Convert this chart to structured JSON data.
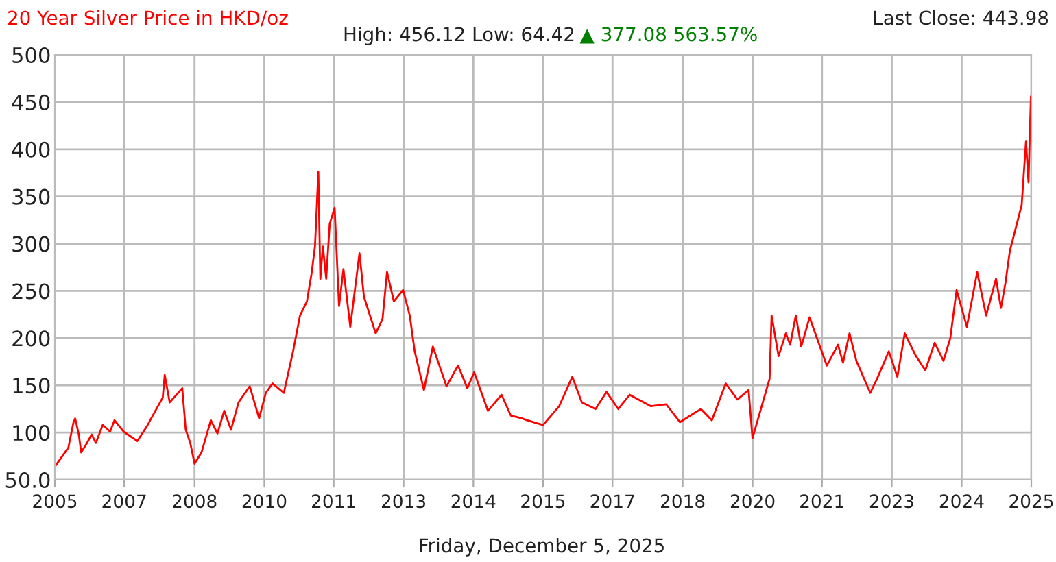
{
  "chart_data": {
    "type": "line",
    "title": "20 Year Silver Price in HKD/oz",
    "subtitle": "High: 456.12 Low: 64.42",
    "annotations": [
      "▲ 377.08 563.57%",
      "Last Close: 443.98",
      "Friday, December 5, 2025"
    ],
    "series": [
      {
        "color": "#ff0000",
        "x": [
          "2005-12-05",
          "2006-03-16",
          "2006-04-22",
          "2006-05-06",
          "2006-06-02",
          "2006-06-20",
          "2006-08-03",
          "2006-09-06",
          "2006-10-08",
          "2006-11-28",
          "2007-01-22",
          "2007-02-24",
          "2007-05-03",
          "2007-08-14",
          "2007-10-22",
          "2007-12-27",
          "2008-02-20",
          "2008-03-06",
          "2008-04-12",
          "2008-06-02",
          "2008-07-15",
          "2008-08-10",
          "2008-09-13",
          "2008-10-15",
          "2008-12-06",
          "2009-02-14",
          "2009-04-04",
          "2009-05-25",
          "2009-07-15",
          "2009-09-09",
          "2009-12-02",
          "2010-02-10",
          "2010-04-01",
          "2010-05-21",
          "2010-08-14",
          "2010-10-22",
          "2010-12-13",
          "2011-02-03",
          "2011-03-09",
          "2011-04-04",
          "2011-04-29",
          "2011-05-14",
          "2011-06-02",
          "2011-06-27",
          "2011-07-23",
          "2011-08-29",
          "2011-10-01",
          "2011-11-03",
          "2011-12-24",
          "2012-03-02",
          "2012-04-04",
          "2012-07-01",
          "2012-08-21",
          "2012-09-24",
          "2012-11-14",
          "2013-01-22",
          "2013-03-13",
          "2013-04-19",
          "2013-06-27",
          "2013-09-02",
          "2013-12-13",
          "2014-03-09",
          "2014-05-18",
          "2014-07-08",
          "2014-10-19",
          "2015-01-29",
          "2015-04-08",
          "2015-07-01",
          "2015-08-07",
          "2015-12-05",
          "2016-04-04",
          "2016-07-11",
          "2016-09-20",
          "2017-01-01",
          "2017-03-24",
          "2017-06-20",
          "2017-09-13",
          "2018-02-17",
          "2018-06-13",
          "2018-09-24",
          "2019-02-28",
          "2019-05-21",
          "2019-09-02",
          "2019-11-28",
          "2020-02-20",
          "2020-03-20",
          "2020-05-18",
          "2020-07-26",
          "2020-08-10",
          "2020-10-01",
          "2020-11-25",
          "2020-12-27",
          "2021-02-07",
          "2021-03-20",
          "2021-05-21",
          "2021-08-07",
          "2021-09-27",
          "2021-12-20",
          "2022-01-26",
          "2022-03-16",
          "2022-05-06",
          "2022-08-18",
          "2022-10-08",
          "2023-01-04",
          "2023-03-09",
          "2023-05-03",
          "2023-07-26",
          "2023-10-04",
          "2023-12-13",
          "2024-02-17",
          "2024-04-08",
          "2024-05-25",
          "2024-08-10",
          "2024-10-26",
          "2025-01-01",
          "2025-03-16",
          "2025-04-22",
          "2025-05-25",
          "2025-06-27",
          "2025-09-24",
          "2025-10-26",
          "2025-11-14",
          "2025-12-02",
          "2025-12-05"
        ],
        "values": [
          64,
          84,
          110,
          115,
          98,
          79,
          89,
          98,
          89,
          108,
          101,
          113,
          101,
          91,
          106,
          123,
          137,
          161,
          132,
          140,
          147,
          103,
          89,
          67,
          79,
          113,
          99,
          123,
          103,
          132,
          149,
          115,
          142,
          152,
          142,
          186,
          224,
          239,
          268,
          297,
          376,
          263,
          297,
          263,
          321,
          338,
          234,
          273,
          212,
          290,
          244,
          205,
          220,
          270,
          239,
          251,
          224,
          186,
          145,
          191,
          149,
          171,
          147,
          164,
          123,
          140,
          118,
          115,
          113,
          108,
          128,
          159,
          132,
          125,
          143,
          125,
          140,
          128,
          130,
          111,
          125,
          113,
          152,
          135,
          145,
          94,
          123,
          157,
          224,
          181,
          205,
          193,
          224,
          191,
          222,
          191,
          171,
          193,
          174,
          205,
          176,
          142,
          157,
          186,
          159,
          205,
          181,
          166,
          195,
          176,
          200,
          251,
          212,
          270,
          224,
          263,
          232,
          258,
          292,
          341,
          408,
          365,
          456,
          444
        ]
      }
    ],
    "xlim": [
      "2005-12-05",
      "2025-12-05"
    ],
    "xticks": [
      {
        "value": "2005-12-05",
        "label": "2005"
      },
      {
        "value": "2007-05-08",
        "label": "2007"
      },
      {
        "value": "2008-10-15",
        "label": "2008"
      },
      {
        "value": "2010-03-21",
        "label": "2010"
      },
      {
        "value": "2011-08-22",
        "label": "2011"
      },
      {
        "value": "2013-01-26",
        "label": "2013"
      },
      {
        "value": "2014-07-02",
        "label": "2014"
      },
      {
        "value": "2015-12-05",
        "label": "2015"
      },
      {
        "value": "2017-05-08",
        "label": "2017"
      },
      {
        "value": "2018-10-15",
        "label": "2018"
      },
      {
        "value": "2020-03-21",
        "label": "2020"
      },
      {
        "value": "2021-08-22",
        "label": "2021"
      },
      {
        "value": "2023-01-26",
        "label": "2023"
      },
      {
        "value": "2024-07-02",
        "label": "2024"
      },
      {
        "value": "2025-12-05",
        "label": "2025"
      }
    ],
    "ylim": [
      50,
      500
    ],
    "yticks": [
      {
        "value": 50,
        "label": "50.0"
      },
      100,
      150,
      200,
      250,
      300,
      350,
      400,
      450,
      500
    ],
    "grid": true,
    "legend": false,
    "marker": "none",
    "line_style": "solid"
  }
}
